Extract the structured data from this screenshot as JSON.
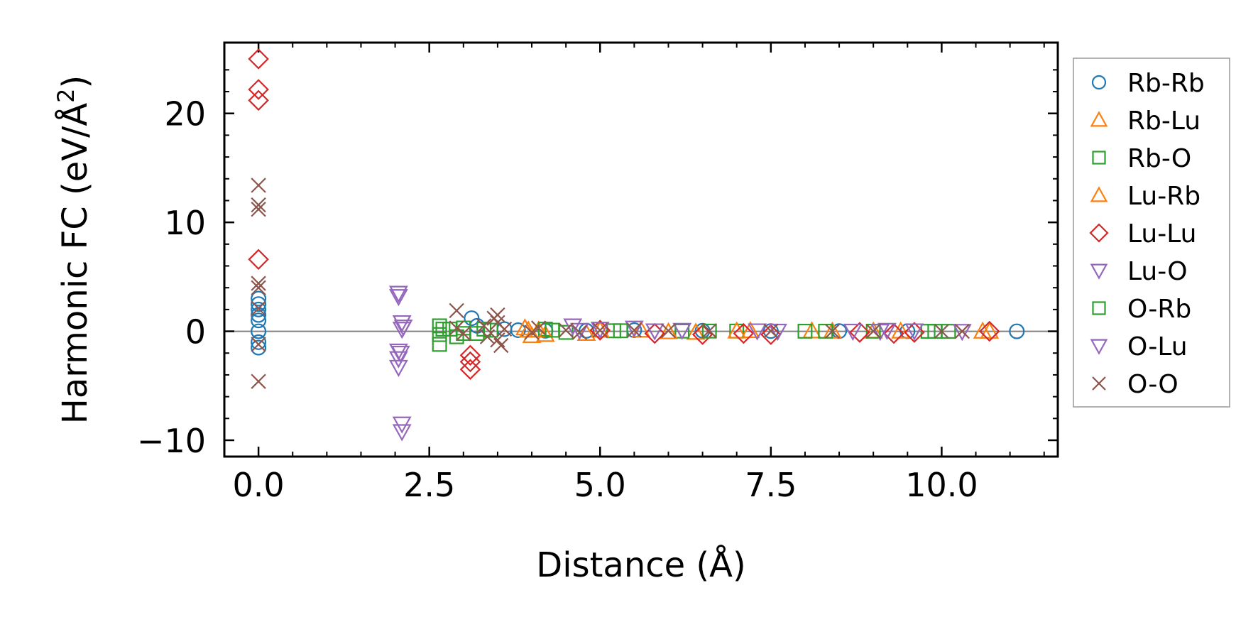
{
  "chart_data": {
    "type": "scatter",
    "title": "",
    "xlabel": "Distance (Å)",
    "ylabel_main": "Harmonic FC (eV/Å",
    "ylabel_sup": "2",
    "ylabel_close": ")",
    "xlim": [
      -0.5,
      11.7
    ],
    "ylim": [
      -11.5,
      26.5
    ],
    "xticks": [
      0.0,
      2.5,
      5.0,
      7.5,
      10.0
    ],
    "xtick_labels": [
      "0.0",
      "2.5",
      "5.0",
      "7.5",
      "10.0"
    ],
    "yticks": [
      -10,
      0,
      10,
      20
    ],
    "ytick_labels": [
      "−10",
      "0",
      "10",
      "20"
    ],
    "legend_position": "outside-right",
    "zero_line": true,
    "series": [
      {
        "name": "Rb-Rb",
        "marker": "circle",
        "color": "#1f77b4",
        "points": [
          [
            0,
            0
          ],
          [
            0,
            3
          ],
          [
            0,
            2.5
          ],
          [
            0,
            2
          ],
          [
            0,
            1.5
          ],
          [
            0,
            1
          ],
          [
            0,
            -1
          ],
          [
            0,
            -1.5
          ],
          [
            3.12,
            1.2
          ],
          [
            3.2,
            0.5
          ],
          [
            3.6,
            0.2
          ],
          [
            3.8,
            0.1
          ],
          [
            4.2,
            0.05
          ],
          [
            4.8,
            0.05
          ],
          [
            5.5,
            0.1
          ],
          [
            6.5,
            0.05
          ],
          [
            7.5,
            0.02
          ],
          [
            8.5,
            0.02
          ],
          [
            9.5,
            0.01
          ],
          [
            11.1,
            0
          ]
        ]
      },
      {
        "name": "Rb-Lu",
        "marker": "triangle-up",
        "color": "#ff7f0e",
        "points": [
          [
            3.9,
            0.3
          ],
          [
            4.0,
            -0.4
          ],
          [
            4.1,
            0.1
          ],
          [
            4.8,
            -0.2
          ],
          [
            5.6,
            0.1
          ],
          [
            6.4,
            -0.1
          ],
          [
            7.2,
            0.05
          ],
          [
            8.1,
            0.03
          ],
          [
            9.0,
            0.02
          ],
          [
            10.7,
            0
          ]
        ]
      },
      {
        "name": "Rb-O",
        "marker": "square",
        "color": "#2ca02c",
        "points": [
          [
            2.65,
            0.5
          ],
          [
            2.65,
            -0.3
          ],
          [
            2.65,
            -1.2
          ],
          [
            2.8,
            0.2
          ],
          [
            2.9,
            -0.5
          ],
          [
            3.0,
            0.3
          ],
          [
            3.2,
            -0.2
          ],
          [
            3.4,
            0.1
          ],
          [
            4.2,
            0.2
          ],
          [
            4.5,
            -0.1
          ],
          [
            5.2,
            0.05
          ],
          [
            6.2,
            0.02
          ],
          [
            7.0,
            0.02
          ],
          [
            8.0,
            0.01
          ],
          [
            9.0,
            0.01
          ],
          [
            9.8,
            0
          ],
          [
            10.1,
            0
          ]
        ]
      },
      {
        "name": "Lu-Rb",
        "marker": "triangle-up",
        "color": "#ff7f0e",
        "points": [
          [
            3.95,
            0.1
          ],
          [
            4.2,
            -0.3
          ],
          [
            5.0,
            0.1
          ],
          [
            6.0,
            -0.05
          ],
          [
            7.0,
            0.02
          ],
          [
            8.4,
            0.01
          ],
          [
            9.4,
            0.01
          ],
          [
            10.6,
            0
          ]
        ]
      },
      {
        "name": "Lu-Lu",
        "marker": "diamond",
        "color": "#d62728",
        "points": [
          [
            0,
            25
          ],
          [
            0,
            22.2
          ],
          [
            0,
            21.2
          ],
          [
            0,
            6.6
          ],
          [
            3.1,
            -2.2
          ],
          [
            3.1,
            -2.8
          ],
          [
            3.1,
            -3.5
          ],
          [
            5.0,
            0.1
          ],
          [
            5.8,
            -0.2
          ],
          [
            6.5,
            -0.3
          ],
          [
            7.1,
            -0.2
          ],
          [
            7.5,
            -0.3
          ],
          [
            8.8,
            -0.1
          ],
          [
            9.3,
            -0.2
          ],
          [
            9.6,
            -0.1
          ],
          [
            10.7,
            0
          ]
        ]
      },
      {
        "name": "Lu-O",
        "marker": "triangle-down",
        "color": "#9467bd",
        "points": [
          [
            2.05,
            3.5
          ],
          [
            2.05,
            3.2
          ],
          [
            2.1,
            0.8
          ],
          [
            2.1,
            0.2
          ],
          [
            2.05,
            -1.8
          ],
          [
            2.05,
            -2.5
          ],
          [
            2.05,
            -3.3
          ],
          [
            2.1,
            -8.5
          ],
          [
            2.1,
            -9.2
          ],
          [
            4.6,
            0.5
          ],
          [
            5.0,
            0.2
          ],
          [
            5.5,
            0.3
          ],
          [
            6.2,
            0.1
          ],
          [
            7.3,
            0.05
          ],
          [
            8.7,
            0.02
          ],
          [
            9.2,
            0.1
          ],
          [
            9.6,
            0.05
          ]
        ]
      },
      {
        "name": "O-Rb",
        "marker": "square",
        "color": "#2ca02c",
        "points": [
          [
            2.7,
            0.2
          ],
          [
            3.0,
            -0.2
          ],
          [
            3.3,
            0.2
          ],
          [
            4.3,
            0.1
          ],
          [
            5.3,
            0.05
          ],
          [
            6.6,
            0.02
          ],
          [
            8.3,
            0.01
          ],
          [
            9.9,
            0
          ]
        ]
      },
      {
        "name": "O-Lu",
        "marker": "triangle-down",
        "color": "#9467bd",
        "points": [
          [
            2.08,
            -2.0
          ],
          [
            2.12,
            0.4
          ],
          [
            4.7,
            0.1
          ],
          [
            5.8,
            0.05
          ],
          [
            7.6,
            0.02
          ],
          [
            9.1,
            0.01
          ],
          [
            10.3,
            0
          ]
        ]
      },
      {
        "name": "O-O",
        "marker": "x",
        "color": "#8c564b",
        "points": [
          [
            0,
            13.4
          ],
          [
            0,
            11.6
          ],
          [
            0,
            11.2
          ],
          [
            0,
            4.4
          ],
          [
            0,
            4.0
          ],
          [
            0,
            2.1
          ],
          [
            0,
            -1.2
          ],
          [
            0,
            -4.6
          ],
          [
            2.9,
            1.9
          ],
          [
            2.9,
            0.3
          ],
          [
            3.0,
            -0.2
          ],
          [
            3.3,
            0.5
          ],
          [
            3.35,
            -0.5
          ],
          [
            3.45,
            1.2
          ],
          [
            3.5,
            1.5
          ],
          [
            3.5,
            0.8
          ],
          [
            3.5,
            -0.8
          ],
          [
            3.55,
            -1.3
          ],
          [
            3.6,
            0.2
          ],
          [
            4.0,
            -0.1
          ],
          [
            4.1,
            0.3
          ],
          [
            4.5,
            0.1
          ],
          [
            4.7,
            -0.1
          ],
          [
            5.0,
            0.1
          ],
          [
            5.5,
            0.1
          ],
          [
            6.0,
            0.05
          ],
          [
            6.6,
            0.05
          ],
          [
            7.5,
            0.02
          ],
          [
            8.4,
            0.01
          ],
          [
            9.0,
            0.01
          ],
          [
            10.0,
            0
          ],
          [
            10.3,
            0
          ]
        ]
      }
    ]
  }
}
